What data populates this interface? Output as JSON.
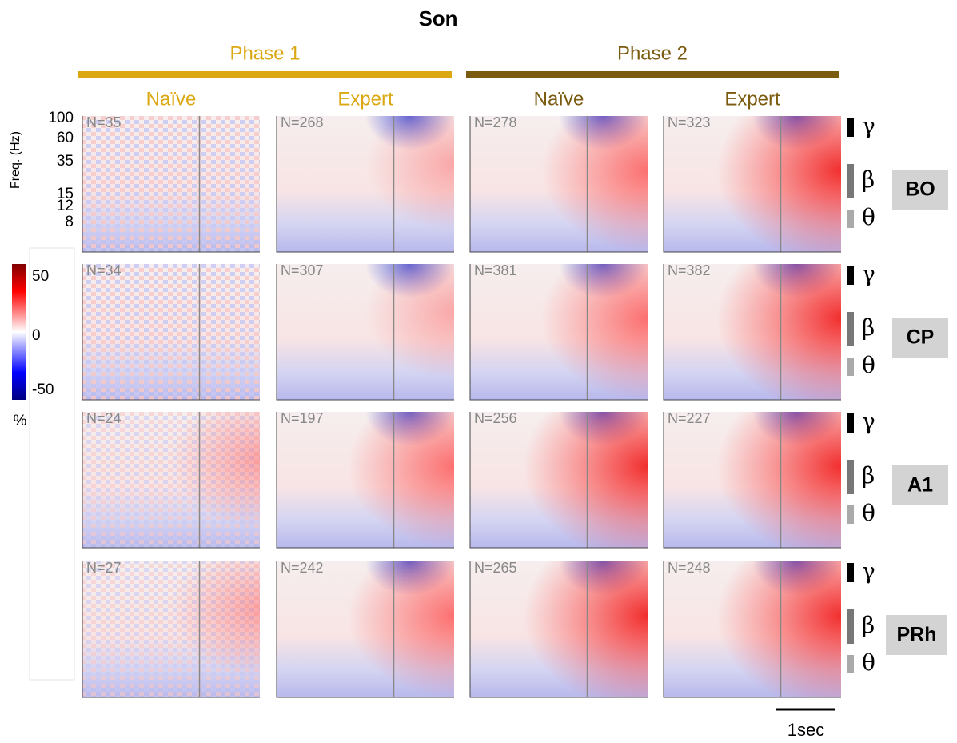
{
  "title": "Son",
  "phases": [
    {
      "label": "Phase 1",
      "columns": [
        "Naïve",
        "Expert"
      ]
    },
    {
      "label": "Phase 2",
      "columns": [
        "Naïve",
        "Expert"
      ]
    }
  ],
  "freq_axis": {
    "label": "Freq. (Hz)",
    "ticks": [
      "100",
      "60",
      "35",
      "15",
      "12",
      "8"
    ]
  },
  "colorbar": {
    "ticks": [
      "50",
      "0",
      "-50"
    ],
    "unit": "%"
  },
  "rows": [
    {
      "area": "BO",
      "counts": [
        "N=35",
        "N=268",
        "N=278",
        "N=323"
      ]
    },
    {
      "area": "CP",
      "counts": [
        "N=34",
        "N=307",
        "N=381",
        "N=382"
      ]
    },
    {
      "area": "A1",
      "counts": [
        "N=24",
        "N=197",
        "N=256",
        "N=227"
      ]
    },
    {
      "area": "PRh",
      "counts": [
        "N=27",
        "N=242",
        "N=265",
        "N=248"
      ]
    }
  ],
  "bands": [
    "γ",
    "β",
    "θ"
  ],
  "scale_bar": "1sec"
}
